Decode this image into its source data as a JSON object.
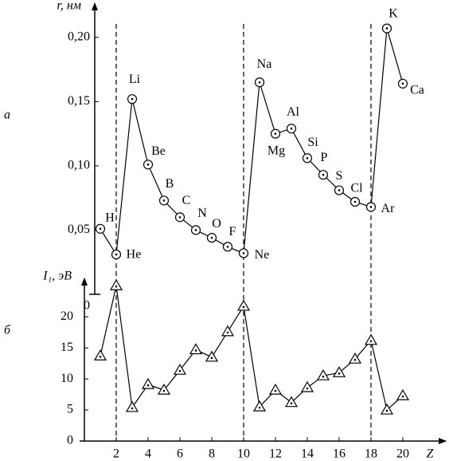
{
  "chart_data": [
    {
      "type": "line",
      "panel_label": "а",
      "y_label": "r, нм",
      "x": [
        1,
        2,
        3,
        4,
        5,
        6,
        7,
        8,
        9,
        10,
        11,
        12,
        13,
        14,
        15,
        16,
        17,
        18,
        19,
        20
      ],
      "labels": [
        "H",
        "He",
        "Li",
        "Be",
        "B",
        "C",
        "N",
        "O",
        "F",
        "Ne",
        "Na",
        "Mg",
        "Al",
        "Si",
        "P",
        "S",
        "Cl",
        "Ar",
        "K",
        "Ca"
      ],
      "values": [
        0.051,
        0.031,
        0.152,
        0.101,
        0.073,
        0.06,
        0.05,
        0.044,
        0.037,
        0.032,
        0.165,
        0.125,
        0.129,
        0.106,
        0.093,
        0.081,
        0.072,
        0.068,
        0.207,
        0.164
      ],
      "color": "#000000",
      "marker": "circle",
      "xlim": [
        0,
        22.5
      ],
      "ylim": [
        0,
        0.226
      ],
      "yticks": [
        0,
        {
          "value": 0.05,
          "label": "0,05"
        },
        {
          "value": 0.1,
          "label": "0,10"
        },
        {
          "value": 0.15,
          "label": "0,15"
        },
        {
          "value": 0.2,
          "label": "0,20"
        }
      ],
      "vlines": [
        2,
        10,
        18
      ]
    },
    {
      "type": "line",
      "panel_label": "б",
      "y_label": "I₁, эВ",
      "x_label": "Z",
      "x": [
        1,
        2,
        3,
        4,
        5,
        6,
        7,
        8,
        9,
        10,
        11,
        12,
        13,
        14,
        15,
        16,
        17,
        18,
        19,
        20
      ],
      "values": [
        13.7,
        25.0,
        5.4,
        9.1,
        8.2,
        11.4,
        14.7,
        13.5,
        17.6,
        21.7,
        5.5,
        8.2,
        6.2,
        8.6,
        10.5,
        11.0,
        13.2,
        16.2,
        5.0,
        7.3
      ],
      "color": "#000000",
      "marker": "triangle",
      "xlim": [
        0,
        22.5
      ],
      "ylim": [
        0,
        25.8
      ],
      "xticks": [
        2,
        4,
        6,
        8,
        10,
        12,
        14,
        16,
        18,
        20
      ],
      "yticks": [
        0,
        5,
        10,
        15,
        20
      ]
    }
  ]
}
